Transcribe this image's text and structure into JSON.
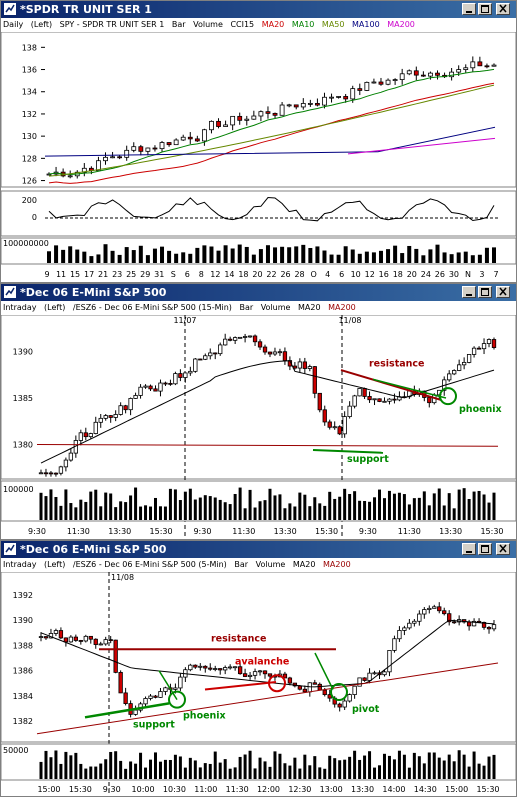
{
  "colors": {
    "ma20": "#cc0000",
    "ma10": "#008000",
    "ma50": "#668800",
    "ma100": "#000080",
    "ma200": "#cc00cc",
    "up": "#ffffff",
    "down": "#cc0000",
    "phoenix": "#008800",
    "support": "#008800",
    "resistance": "#990000"
  },
  "icons": [
    "chart-window-icon",
    "minimize-icon",
    "maximize-icon",
    "close-icon"
  ],
  "win1": {
    "title": "*SPDR TR UNIT SER 1",
    "header": {
      "period": "Daily",
      "scale": "(Left)",
      "symbol": "SPY - SPDR TR UNIT SER 1",
      "type": "Bar",
      "volume": "Volume",
      "cci": "CCI15",
      "ma20": "MA20",
      "ma10": "MA10",
      "ma50": "MA50",
      "ma100": "MA100",
      "ma200": "MA200"
    },
    "y_ticks": [
      "138",
      "136",
      "134",
      "132",
      "130",
      "128",
      "126"
    ],
    "cci_ticks": [
      "200",
      "0"
    ],
    "vol_label": "100000000",
    "x_ticks": [
      "9",
      "11",
      "15",
      "17",
      "21",
      "23",
      "25",
      "29",
      "31",
      "S",
      "6",
      "8",
      "12",
      "14",
      "18",
      "20",
      "22",
      "26",
      "28",
      "O",
      "4",
      "6",
      "10",
      "12",
      "16",
      "18",
      "20",
      "24",
      "26",
      "30",
      "N",
      "3",
      "7"
    ]
  },
  "win2": {
    "title": "*Dec 06  E-Mini S&P 500",
    "header": {
      "period": "Intraday",
      "scale": "(Left)",
      "symbol": "/ESZ6 - Dec 06  E-Mini S&P 500 (15-Min)",
      "type": "Bar",
      "volume": "Volume",
      "ma20": "MA20",
      "ma200": "MA200"
    },
    "date1": "11/07",
    "date2": "11/08",
    "y_ticks": [
      "1390",
      "1385",
      "1380"
    ],
    "vol_label": "100000",
    "x_ticks": [
      "9:30",
      "11:30",
      "13:30",
      "15:30",
      "9:30",
      "11:30",
      "13:30",
      "15:30",
      "9:30",
      "11:30",
      "13:30",
      "15:30"
    ],
    "annotations": {
      "resistance": "resistance",
      "phoenix": "phoenix",
      "support": "support"
    }
  },
  "win3": {
    "title": "*Dec 06  E-Mini S&P 500",
    "header": {
      "period": "Intraday",
      "scale": "(Left)",
      "symbol": "/ESZ6 - Dec 06  E-Mini S&P 500 (5-Min)",
      "type": "Bar",
      "volume": "Volume",
      "ma20": "MA20",
      "ma200": "MA200"
    },
    "date1": "11/08",
    "y_ticks": [
      "1392",
      "1390",
      "1388",
      "1386",
      "1384",
      "1382"
    ],
    "vol_label": "50000",
    "x_ticks": [
      "15:00",
      "15:30",
      "9:30",
      "10:00",
      "10:30",
      "11:00",
      "11:30",
      "12:00",
      "12:30",
      "13:00",
      "13:30",
      "14:00",
      "14:30",
      "15:00",
      "15:30"
    ],
    "annotations": {
      "resistance": "resistance",
      "avalanche": "avalanche",
      "support": "support",
      "phoenix": "phoenix",
      "pivot": "pivot"
    }
  }
}
